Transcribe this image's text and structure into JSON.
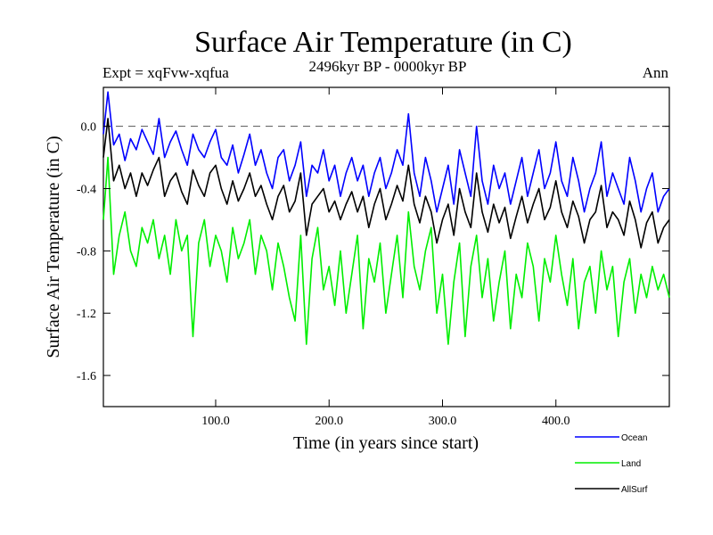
{
  "chart_data": {
    "type": "line",
    "title": "Surface Air Temperature (in C)",
    "subtitle": "2496kyr BP - 0000kyr BP",
    "experiment_label": "Expt = xqFvw-xqfua",
    "season_label": "Ann",
    "xlabel": "Time (in years since start)",
    "ylabel": "Surface Air Temperature (in C)",
    "xlim": [
      1,
      500
    ],
    "ylim": [
      -1.8,
      0.25
    ],
    "xticks": [
      100,
      200,
      300,
      400
    ],
    "xtick_labels": [
      "100.0",
      "200.0",
      "300.0",
      "400.0"
    ],
    "yticks": [
      0.0,
      -0.4,
      -0.8,
      -1.2,
      -1.6
    ],
    "ytick_labels": [
      "0.0",
      "-0.4",
      "-0.8",
      "-1.2",
      "-1.6"
    ],
    "reference_line": 0.0,
    "legend_position": "bottom-right",
    "x": [
      1,
      5,
      10,
      15,
      20,
      25,
      30,
      35,
      40,
      45,
      50,
      55,
      60,
      65,
      70,
      75,
      80,
      85,
      90,
      95,
      100,
      105,
      110,
      115,
      120,
      125,
      130,
      135,
      140,
      145,
      150,
      155,
      160,
      165,
      170,
      175,
      180,
      185,
      190,
      195,
      200,
      205,
      210,
      215,
      220,
      225,
      230,
      235,
      240,
      245,
      250,
      255,
      260,
      265,
      270,
      275,
      280,
      285,
      290,
      295,
      300,
      305,
      310,
      315,
      320,
      325,
      330,
      335,
      340,
      345,
      350,
      355,
      360,
      365,
      370,
      375,
      380,
      385,
      390,
      395,
      400,
      405,
      410,
      415,
      420,
      425,
      430,
      435,
      440,
      445,
      450,
      455,
      460,
      465,
      470,
      475,
      480,
      485,
      490,
      495,
      500
    ],
    "series": [
      {
        "name": "Ocean",
        "color": "#0000ff",
        "values": [
          -0.05,
          0.22,
          -0.12,
          -0.05,
          -0.22,
          -0.08,
          -0.15,
          -0.02,
          -0.1,
          -0.18,
          0.05,
          -0.2,
          -0.1,
          -0.03,
          -0.15,
          -0.25,
          -0.05,
          -0.15,
          -0.2,
          -0.1,
          -0.02,
          -0.2,
          -0.25,
          -0.12,
          -0.3,
          -0.18,
          -0.05,
          -0.25,
          -0.15,
          -0.3,
          -0.4,
          -0.2,
          -0.15,
          -0.35,
          -0.25,
          -0.1,
          -0.45,
          -0.25,
          -0.3,
          -0.15,
          -0.35,
          -0.25,
          -0.45,
          -0.3,
          -0.2,
          -0.35,
          -0.25,
          -0.45,
          -0.3,
          -0.2,
          -0.4,
          -0.3,
          -0.15,
          -0.25,
          0.08,
          -0.3,
          -0.45,
          -0.2,
          -0.35,
          -0.55,
          -0.4,
          -0.25,
          -0.5,
          -0.15,
          -0.3,
          -0.45,
          0.0,
          -0.35,
          -0.5,
          -0.25,
          -0.4,
          -0.3,
          -0.5,
          -0.35,
          -0.2,
          -0.45,
          -0.3,
          -0.15,
          -0.4,
          -0.3,
          -0.1,
          -0.35,
          -0.45,
          -0.2,
          -0.35,
          -0.55,
          -0.4,
          -0.3,
          -0.1,
          -0.45,
          -0.3,
          -0.4,
          -0.5,
          -0.2,
          -0.35,
          -0.55,
          -0.4,
          -0.3,
          -0.55,
          -0.45,
          -0.4
        ]
      },
      {
        "name": "Land",
        "color": "#00ee00",
        "values": [
          -0.6,
          -0.2,
          -0.95,
          -0.7,
          -0.55,
          -0.8,
          -0.9,
          -0.65,
          -0.75,
          -0.6,
          -0.85,
          -0.7,
          -0.95,
          -0.6,
          -0.8,
          -0.7,
          -1.35,
          -0.75,
          -0.6,
          -0.9,
          -0.7,
          -0.8,
          -1.0,
          -0.65,
          -0.85,
          -0.75,
          -0.6,
          -0.95,
          -0.7,
          -0.8,
          -1.05,
          -0.75,
          -0.9,
          -1.1,
          -1.25,
          -0.7,
          -1.4,
          -0.85,
          -0.65,
          -1.05,
          -0.9,
          -1.15,
          -0.8,
          -1.2,
          -0.95,
          -0.7,
          -1.3,
          -0.85,
          -1.0,
          -0.75,
          -1.2,
          -0.95,
          -0.7,
          -1.1,
          -0.55,
          -0.9,
          -1.05,
          -0.8,
          -0.65,
          -1.2,
          -0.95,
          -1.4,
          -1.0,
          -0.75,
          -1.35,
          -0.9,
          -0.7,
          -1.1,
          -0.85,
          -1.25,
          -1.0,
          -0.8,
          -1.3,
          -0.95,
          -1.1,
          -0.75,
          -0.9,
          -1.25,
          -0.85,
          -1.0,
          -0.7,
          -0.95,
          -1.15,
          -0.85,
          -1.3,
          -1.0,
          -0.9,
          -1.2,
          -0.8,
          -1.05,
          -0.9,
          -1.35,
          -1.0,
          -0.85,
          -1.2,
          -0.95,
          -1.1,
          -0.9,
          -1.05,
          -0.95,
          -1.1
        ]
      },
      {
        "name": "AllSurf",
        "color": "#000000",
        "values": [
          -0.2,
          0.05,
          -0.35,
          -0.25,
          -0.4,
          -0.3,
          -0.45,
          -0.3,
          -0.38,
          -0.28,
          -0.2,
          -0.45,
          -0.35,
          -0.3,
          -0.42,
          -0.5,
          -0.28,
          -0.38,
          -0.45,
          -0.3,
          -0.25,
          -0.4,
          -0.5,
          -0.35,
          -0.48,
          -0.4,
          -0.3,
          -0.45,
          -0.38,
          -0.5,
          -0.6,
          -0.45,
          -0.38,
          -0.55,
          -0.48,
          -0.3,
          -0.7,
          -0.5,
          -0.45,
          -0.4,
          -0.55,
          -0.48,
          -0.6,
          -0.5,
          -0.42,
          -0.55,
          -0.45,
          -0.65,
          -0.5,
          -0.4,
          -0.6,
          -0.5,
          -0.38,
          -0.48,
          -0.25,
          -0.5,
          -0.62,
          -0.45,
          -0.55,
          -0.75,
          -0.6,
          -0.5,
          -0.7,
          -0.4,
          -0.55,
          -0.65,
          -0.3,
          -0.55,
          -0.68,
          -0.5,
          -0.62,
          -0.52,
          -0.72,
          -0.58,
          -0.45,
          -0.62,
          -0.5,
          -0.4,
          -0.6,
          -0.52,
          -0.35,
          -0.55,
          -0.65,
          -0.48,
          -0.58,
          -0.75,
          -0.6,
          -0.55,
          -0.38,
          -0.65,
          -0.55,
          -0.6,
          -0.7,
          -0.48,
          -0.6,
          -0.78,
          -0.62,
          -0.55,
          -0.75,
          -0.65,
          -0.6
        ]
      }
    ]
  }
}
